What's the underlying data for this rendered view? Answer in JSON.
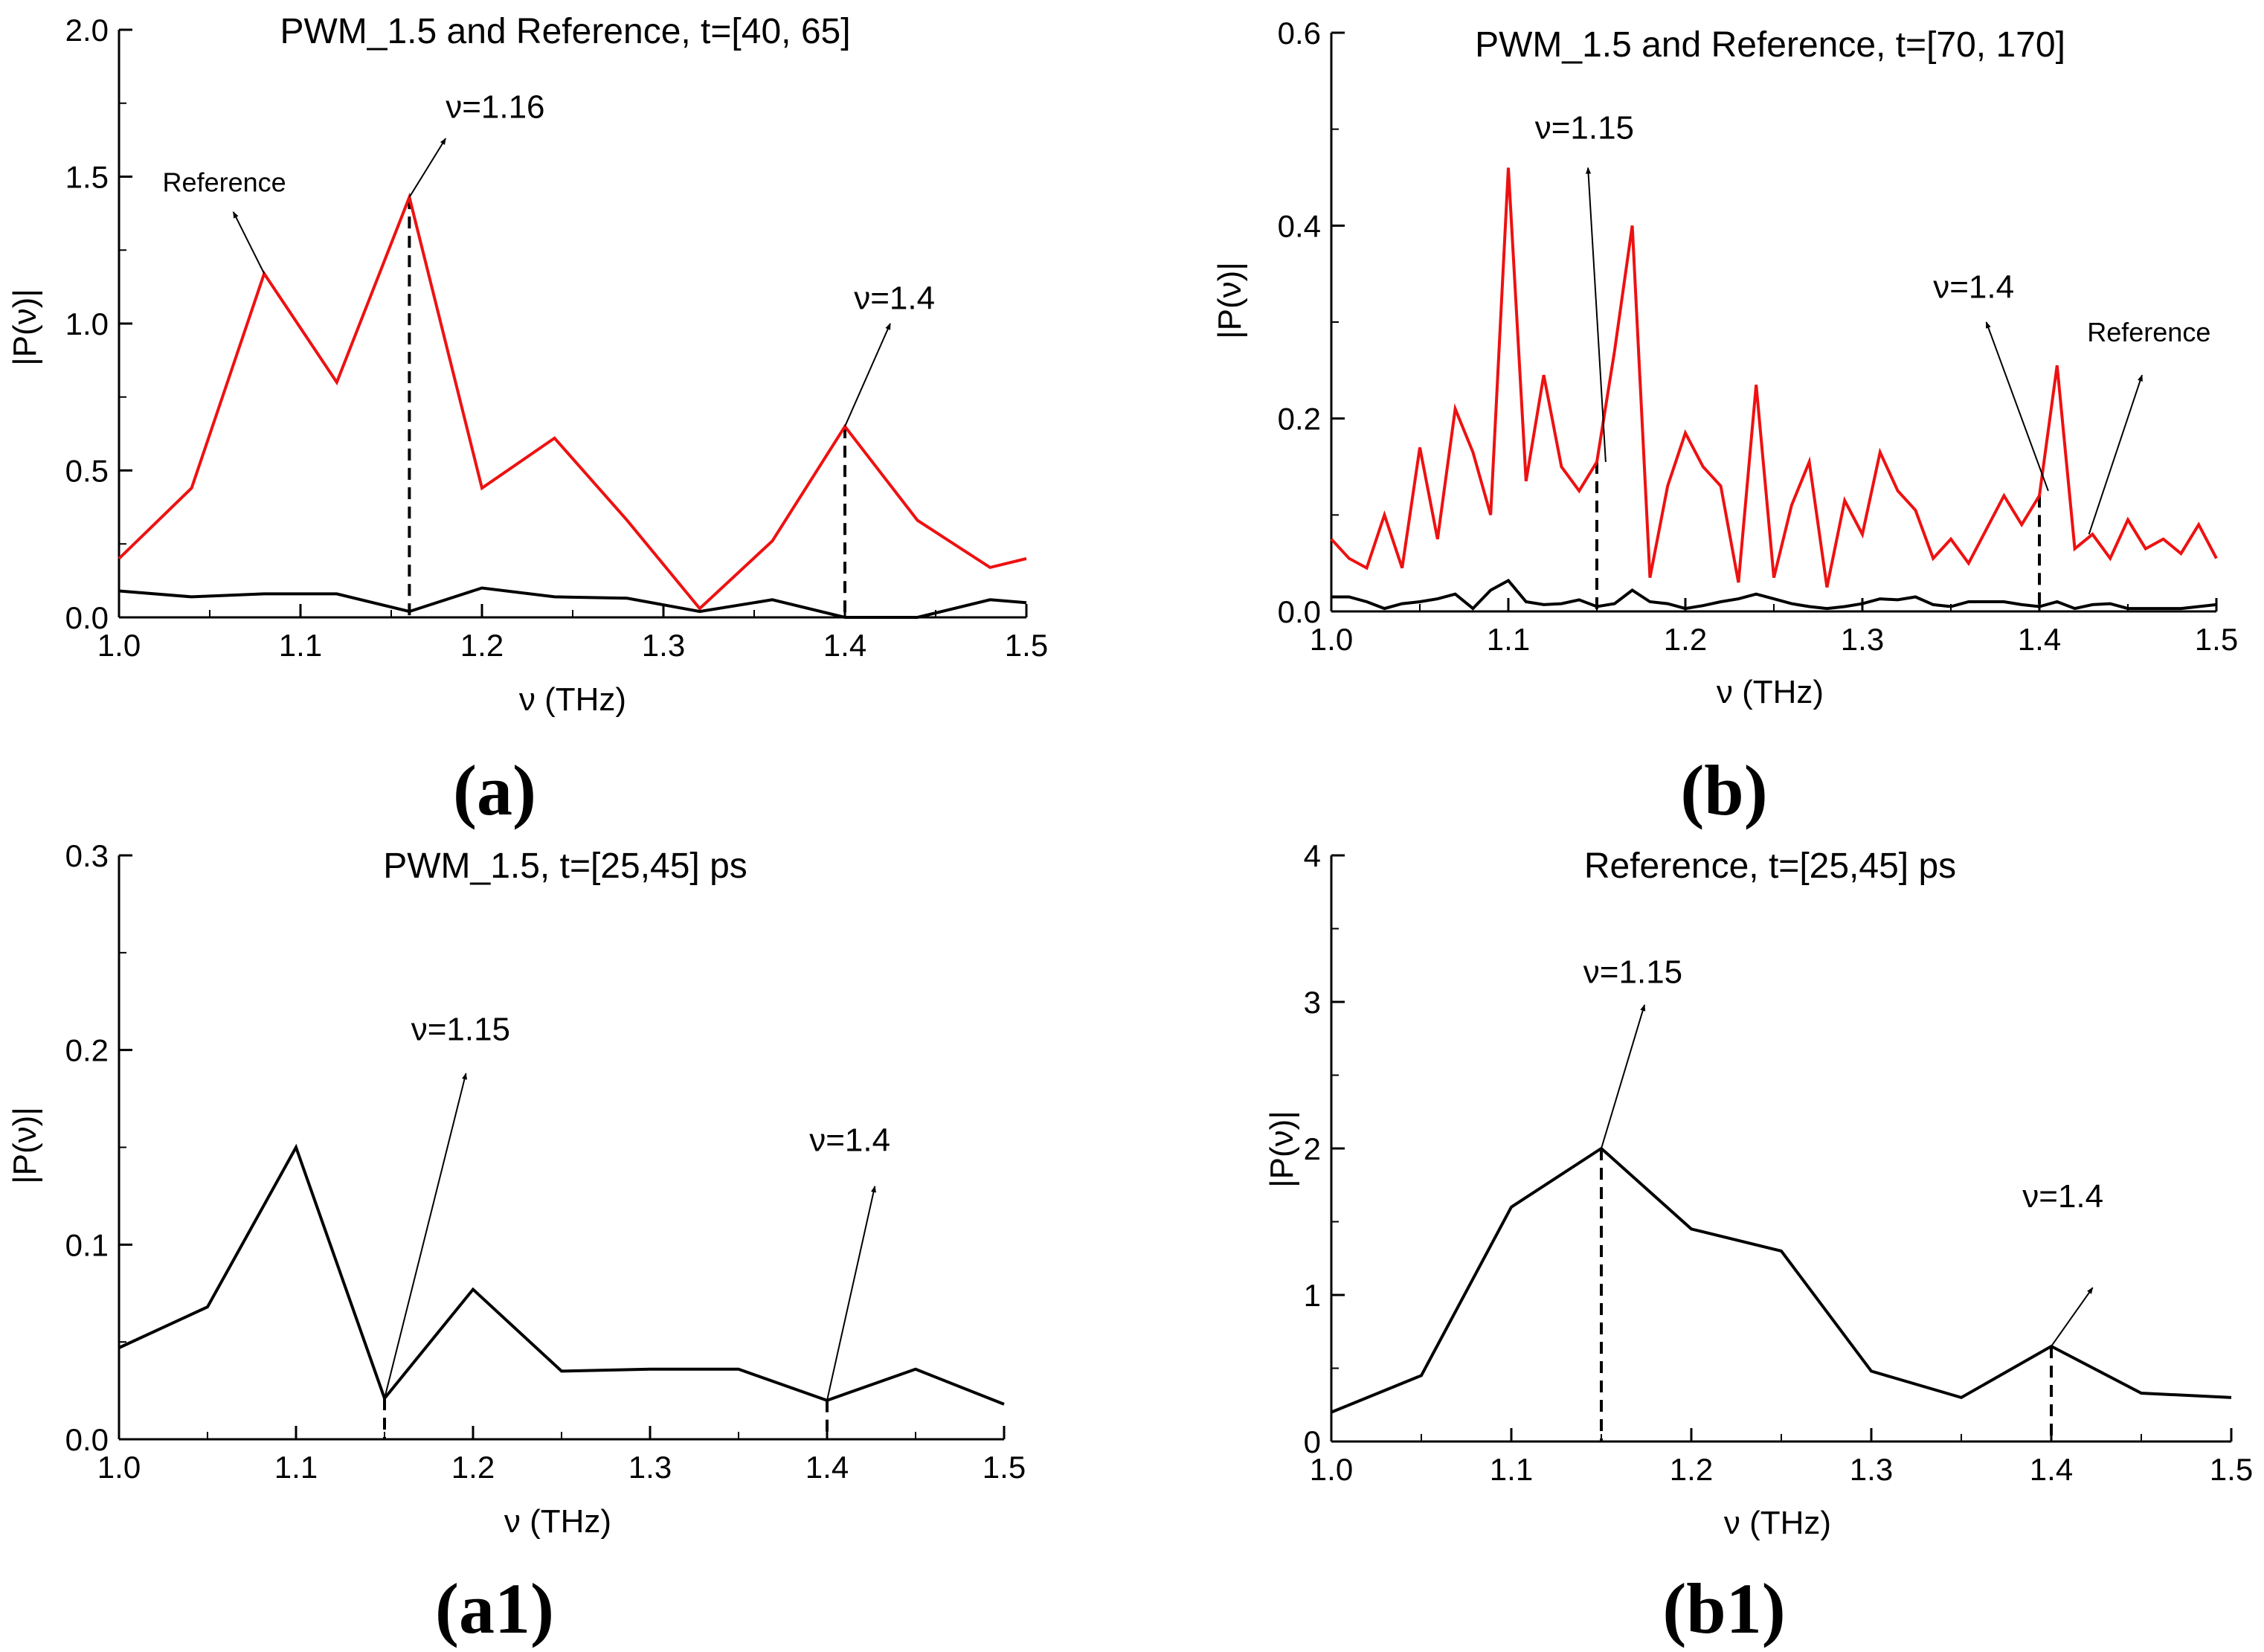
{
  "colors": {
    "reference": "#ee1111",
    "pwm": "#000000",
    "axis": "#000000"
  },
  "chart_data": [
    {
      "id": "a",
      "type": "line",
      "panel_label": "(a)",
      "title": "PWM_1.5 and Reference, t=[40, 65]",
      "xlabel": "ν (THz)",
      "ylabel": "|P(ν)|",
      "xlim": [
        1.0,
        1.5
      ],
      "ylim": [
        0,
        2.0
      ],
      "xticks": [
        1.0,
        1.1,
        1.2,
        1.3,
        1.4,
        1.5
      ],
      "xtick_labels": [
        "1.0",
        "1.1",
        "1.2",
        "1.3",
        "1.4",
        "1.5"
      ],
      "yticks": [
        0.0,
        0.5,
        1.0,
        1.5,
        2.0
      ],
      "ytick_labels": [
        "0.0",
        "0.5",
        "1.0",
        "1.5",
        "2.0"
      ],
      "series": [
        {
          "name": "Reference",
          "color": "#ee1111",
          "x": [
            1.0,
            1.04,
            1.08,
            1.12,
            1.16,
            1.2,
            1.24,
            1.28,
            1.32,
            1.36,
            1.4,
            1.44,
            1.48,
            1.5
          ],
          "y": [
            0.2,
            0.44,
            1.17,
            0.8,
            1.43,
            0.44,
            0.61,
            0.33,
            0.03,
            0.26,
            0.65,
            0.33,
            0.17,
            0.2
          ]
        },
        {
          "name": "PWM_1.5",
          "color": "#000000",
          "x": [
            1.0,
            1.04,
            1.08,
            1.12,
            1.16,
            1.2,
            1.24,
            1.28,
            1.32,
            1.36,
            1.4,
            1.44,
            1.48,
            1.5
          ],
          "y": [
            0.09,
            0.07,
            0.08,
            0.08,
            0.02,
            0.1,
            0.07,
            0.065,
            0.02,
            0.06,
            0.0,
            0.0,
            0.06,
            0.05
          ]
        }
      ],
      "dashed_markers": [
        {
          "x": 1.16,
          "y": 1.43
        },
        {
          "x": 1.4,
          "y": 0.65
        }
      ],
      "annotations": [
        {
          "text": "ν=1.16",
          "from": [
            1.16,
            1.43
          ],
          "to": [
            1.18,
            1.63
          ],
          "label_at": [
            1.18,
            1.7
          ],
          "anchor": "start",
          "size": "large"
        },
        {
          "text": "ν=1.4",
          "from": [
            1.4,
            0.65
          ],
          "to": [
            1.425,
            1.0
          ],
          "label_at": [
            1.405,
            1.05
          ],
          "anchor": "start",
          "size": "large"
        },
        {
          "text": "Reference",
          "from": [
            1.08,
            1.17
          ],
          "to": [
            1.063,
            1.38
          ],
          "label_at": [
            1.024,
            1.45
          ],
          "anchor": "start",
          "size": "small"
        }
      ]
    },
    {
      "id": "b",
      "type": "line",
      "panel_label": "(b)",
      "title": "PWM_1.5 and Reference, t=[70, 170]",
      "xlabel": "ν (THz)",
      "ylabel": "|P(ν)|",
      "xlim": [
        1.0,
        1.5
      ],
      "ylim": [
        0,
        0.6
      ],
      "xticks": [
        1.0,
        1.1,
        1.2,
        1.3,
        1.4,
        1.5
      ],
      "xtick_labels": [
        "1.0",
        "1.1",
        "1.2",
        "1.3",
        "1.4",
        "1.5"
      ],
      "yticks": [
        0.0,
        0.2,
        0.4,
        0.6
      ],
      "ytick_labels": [
        "0.0",
        "0.2",
        "0.4",
        "0.6"
      ],
      "series": [
        {
          "name": "Reference",
          "color": "#ee1111",
          "x": [
            1.0,
            1.01,
            1.02,
            1.03,
            1.04,
            1.05,
            1.06,
            1.07,
            1.08,
            1.09,
            1.1,
            1.11,
            1.12,
            1.13,
            1.14,
            1.15,
            1.16,
            1.17,
            1.18,
            1.19,
            1.2,
            1.21,
            1.22,
            1.23,
            1.24,
            1.25,
            1.26,
            1.27,
            1.28,
            1.29,
            1.3,
            1.31,
            1.32,
            1.33,
            1.34,
            1.35,
            1.36,
            1.37,
            1.38,
            1.39,
            1.4,
            1.41,
            1.42,
            1.43,
            1.44,
            1.45,
            1.46,
            1.47,
            1.48,
            1.49,
            1.5
          ],
          "y": [
            0.075,
            0.055,
            0.045,
            0.1,
            0.045,
            0.17,
            0.075,
            0.21,
            0.165,
            0.1,
            0.46,
            0.135,
            0.245,
            0.15,
            0.125,
            0.155,
            0.27,
            0.4,
            0.035,
            0.13,
            0.185,
            0.15,
            0.13,
            0.03,
            0.235,
            0.035,
            0.11,
            0.155,
            0.025,
            0.115,
            0.08,
            0.165,
            0.125,
            0.105,
            0.055,
            0.075,
            0.05,
            0.085,
            0.12,
            0.09,
            0.12,
            0.255,
            0.065,
            0.08,
            0.055,
            0.095,
            0.065,
            0.075,
            0.06,
            0.09,
            0.055
          ]
        },
        {
          "name": "PWM_1.5",
          "color": "#000000",
          "x": [
            1.0,
            1.01,
            1.02,
            1.03,
            1.04,
            1.05,
            1.06,
            1.07,
            1.08,
            1.09,
            1.1,
            1.11,
            1.12,
            1.13,
            1.14,
            1.15,
            1.16,
            1.17,
            1.18,
            1.19,
            1.2,
            1.21,
            1.22,
            1.23,
            1.24,
            1.25,
            1.26,
            1.27,
            1.28,
            1.29,
            1.3,
            1.31,
            1.32,
            1.33,
            1.34,
            1.35,
            1.36,
            1.37,
            1.38,
            1.39,
            1.4,
            1.41,
            1.42,
            1.43,
            1.44,
            1.45,
            1.46,
            1.47,
            1.48,
            1.49,
            1.5
          ],
          "y": [
            0.015,
            0.015,
            0.01,
            0.003,
            0.008,
            0.01,
            0.013,
            0.018,
            0.003,
            0.022,
            0.032,
            0.01,
            0.007,
            0.008,
            0.012,
            0.005,
            0.008,
            0.022,
            0.01,
            0.008,
            0.003,
            0.006,
            0.01,
            0.013,
            0.018,
            0.013,
            0.008,
            0.005,
            0.003,
            0.005,
            0.008,
            0.013,
            0.012,
            0.015,
            0.007,
            0.005,
            0.01,
            0.01,
            0.01,
            0.007,
            0.005,
            0.01,
            0.003,
            0.007,
            0.008,
            0.003,
            0.003,
            0.003,
            0.003,
            0.005,
            0.007
          ]
        }
      ],
      "dashed_markers": [
        {
          "x": 1.15,
          "y": 0.155
        },
        {
          "x": 1.4,
          "y": 0.12
        }
      ],
      "annotations": [
        {
          "text": "ν=1.15",
          "from": [
            1.155,
            0.155
          ],
          "to": [
            1.145,
            0.46
          ],
          "label_at": [
            1.115,
            0.49
          ],
          "anchor": "start",
          "size": "large"
        },
        {
          "text": "ν=1.4",
          "from": [
            1.405,
            0.125
          ],
          "to": [
            1.37,
            0.3
          ],
          "label_at": [
            1.34,
            0.325
          ],
          "anchor": "start",
          "size": "large"
        },
        {
          "text": "Reference",
          "from": [
            1.428,
            0.08
          ],
          "to": [
            1.458,
            0.245
          ],
          "label_at": [
            1.427,
            0.28
          ],
          "anchor": "start",
          "size": "small"
        }
      ]
    },
    {
      "id": "a1",
      "type": "line",
      "panel_label": "(a1)",
      "title": "PWM_1.5, t=[25,45] ps",
      "xlabel": "ν (THz)",
      "ylabel": "|P(ν)|",
      "xlim": [
        1.0,
        1.5
      ],
      "ylim": [
        0,
        0.3
      ],
      "xticks": [
        1.0,
        1.1,
        1.2,
        1.3,
        1.4,
        1.5
      ],
      "xtick_labels": [
        "1.0",
        "1.1",
        "1.2",
        "1.3",
        "1.4",
        "1.5"
      ],
      "yticks": [
        0.0,
        0.1,
        0.2,
        0.3
      ],
      "ytick_labels": [
        "0.0",
        "0.1",
        "0.2",
        "0.3"
      ],
      "series": [
        {
          "name": "PWM_1.5",
          "color": "#000000",
          "x": [
            1.0,
            1.05,
            1.1,
            1.15,
            1.2,
            1.25,
            1.3,
            1.35,
            1.4,
            1.45,
            1.5
          ],
          "y": [
            0.047,
            0.068,
            0.15,
            0.021,
            0.077,
            0.035,
            0.036,
            0.036,
            0.02,
            0.036,
            0.018
          ]
        }
      ],
      "dashed_markers": [
        {
          "x": 1.15,
          "y": 0.021
        },
        {
          "x": 1.4,
          "y": 0.02
        }
      ],
      "annotations": [
        {
          "text": "ν=1.15",
          "from": [
            1.15,
            0.021
          ],
          "to": [
            1.196,
            0.188
          ],
          "label_at": [
            1.165,
            0.205
          ],
          "anchor": "start",
          "size": "large"
        },
        {
          "text": "ν=1.4",
          "from": [
            1.4,
            0.02
          ],
          "to": [
            1.427,
            0.13
          ],
          "label_at": [
            1.39,
            0.148
          ],
          "anchor": "start",
          "size": "large"
        }
      ]
    },
    {
      "id": "b1",
      "type": "line",
      "panel_label": "(b1)",
      "title": "Reference, t=[25,45] ps",
      "xlabel": "ν (THz)",
      "ylabel": "|P(ν)|",
      "xlim": [
        1.0,
        1.5
      ],
      "ylim": [
        0,
        4
      ],
      "xticks": [
        1.0,
        1.1,
        1.2,
        1.3,
        1.4,
        1.5
      ],
      "xtick_labels": [
        "1.0",
        "1.1",
        "1.2",
        "1.3",
        "1.4",
        "1.5"
      ],
      "yticks": [
        0,
        1,
        2,
        3,
        4
      ],
      "ytick_labels": [
        "0",
        "1",
        "2",
        "3",
        "4"
      ],
      "series": [
        {
          "name": "Reference",
          "color": "#000000",
          "x": [
            1.0,
            1.05,
            1.1,
            1.15,
            1.2,
            1.25,
            1.3,
            1.35,
            1.4,
            1.45,
            1.5
          ],
          "y": [
            0.2,
            0.45,
            1.6,
            2.0,
            1.45,
            1.3,
            0.48,
            0.3,
            0.65,
            0.33,
            0.3
          ]
        }
      ],
      "dashed_markers": [
        {
          "x": 1.15,
          "y": 2.0
        },
        {
          "x": 1.4,
          "y": 0.65
        }
      ],
      "annotations": [
        {
          "text": "ν=1.15",
          "from": [
            1.15,
            2.0
          ],
          "to": [
            1.174,
            2.98
          ],
          "label_at": [
            1.14,
            3.13
          ],
          "anchor": "start",
          "size": "large"
        },
        {
          "text": "ν=1.4",
          "from": [
            1.4,
            0.65
          ],
          "to": [
            1.423,
            1.05
          ],
          "label_at": [
            1.384,
            1.6
          ],
          "anchor": "start",
          "size": "large"
        }
      ]
    }
  ]
}
